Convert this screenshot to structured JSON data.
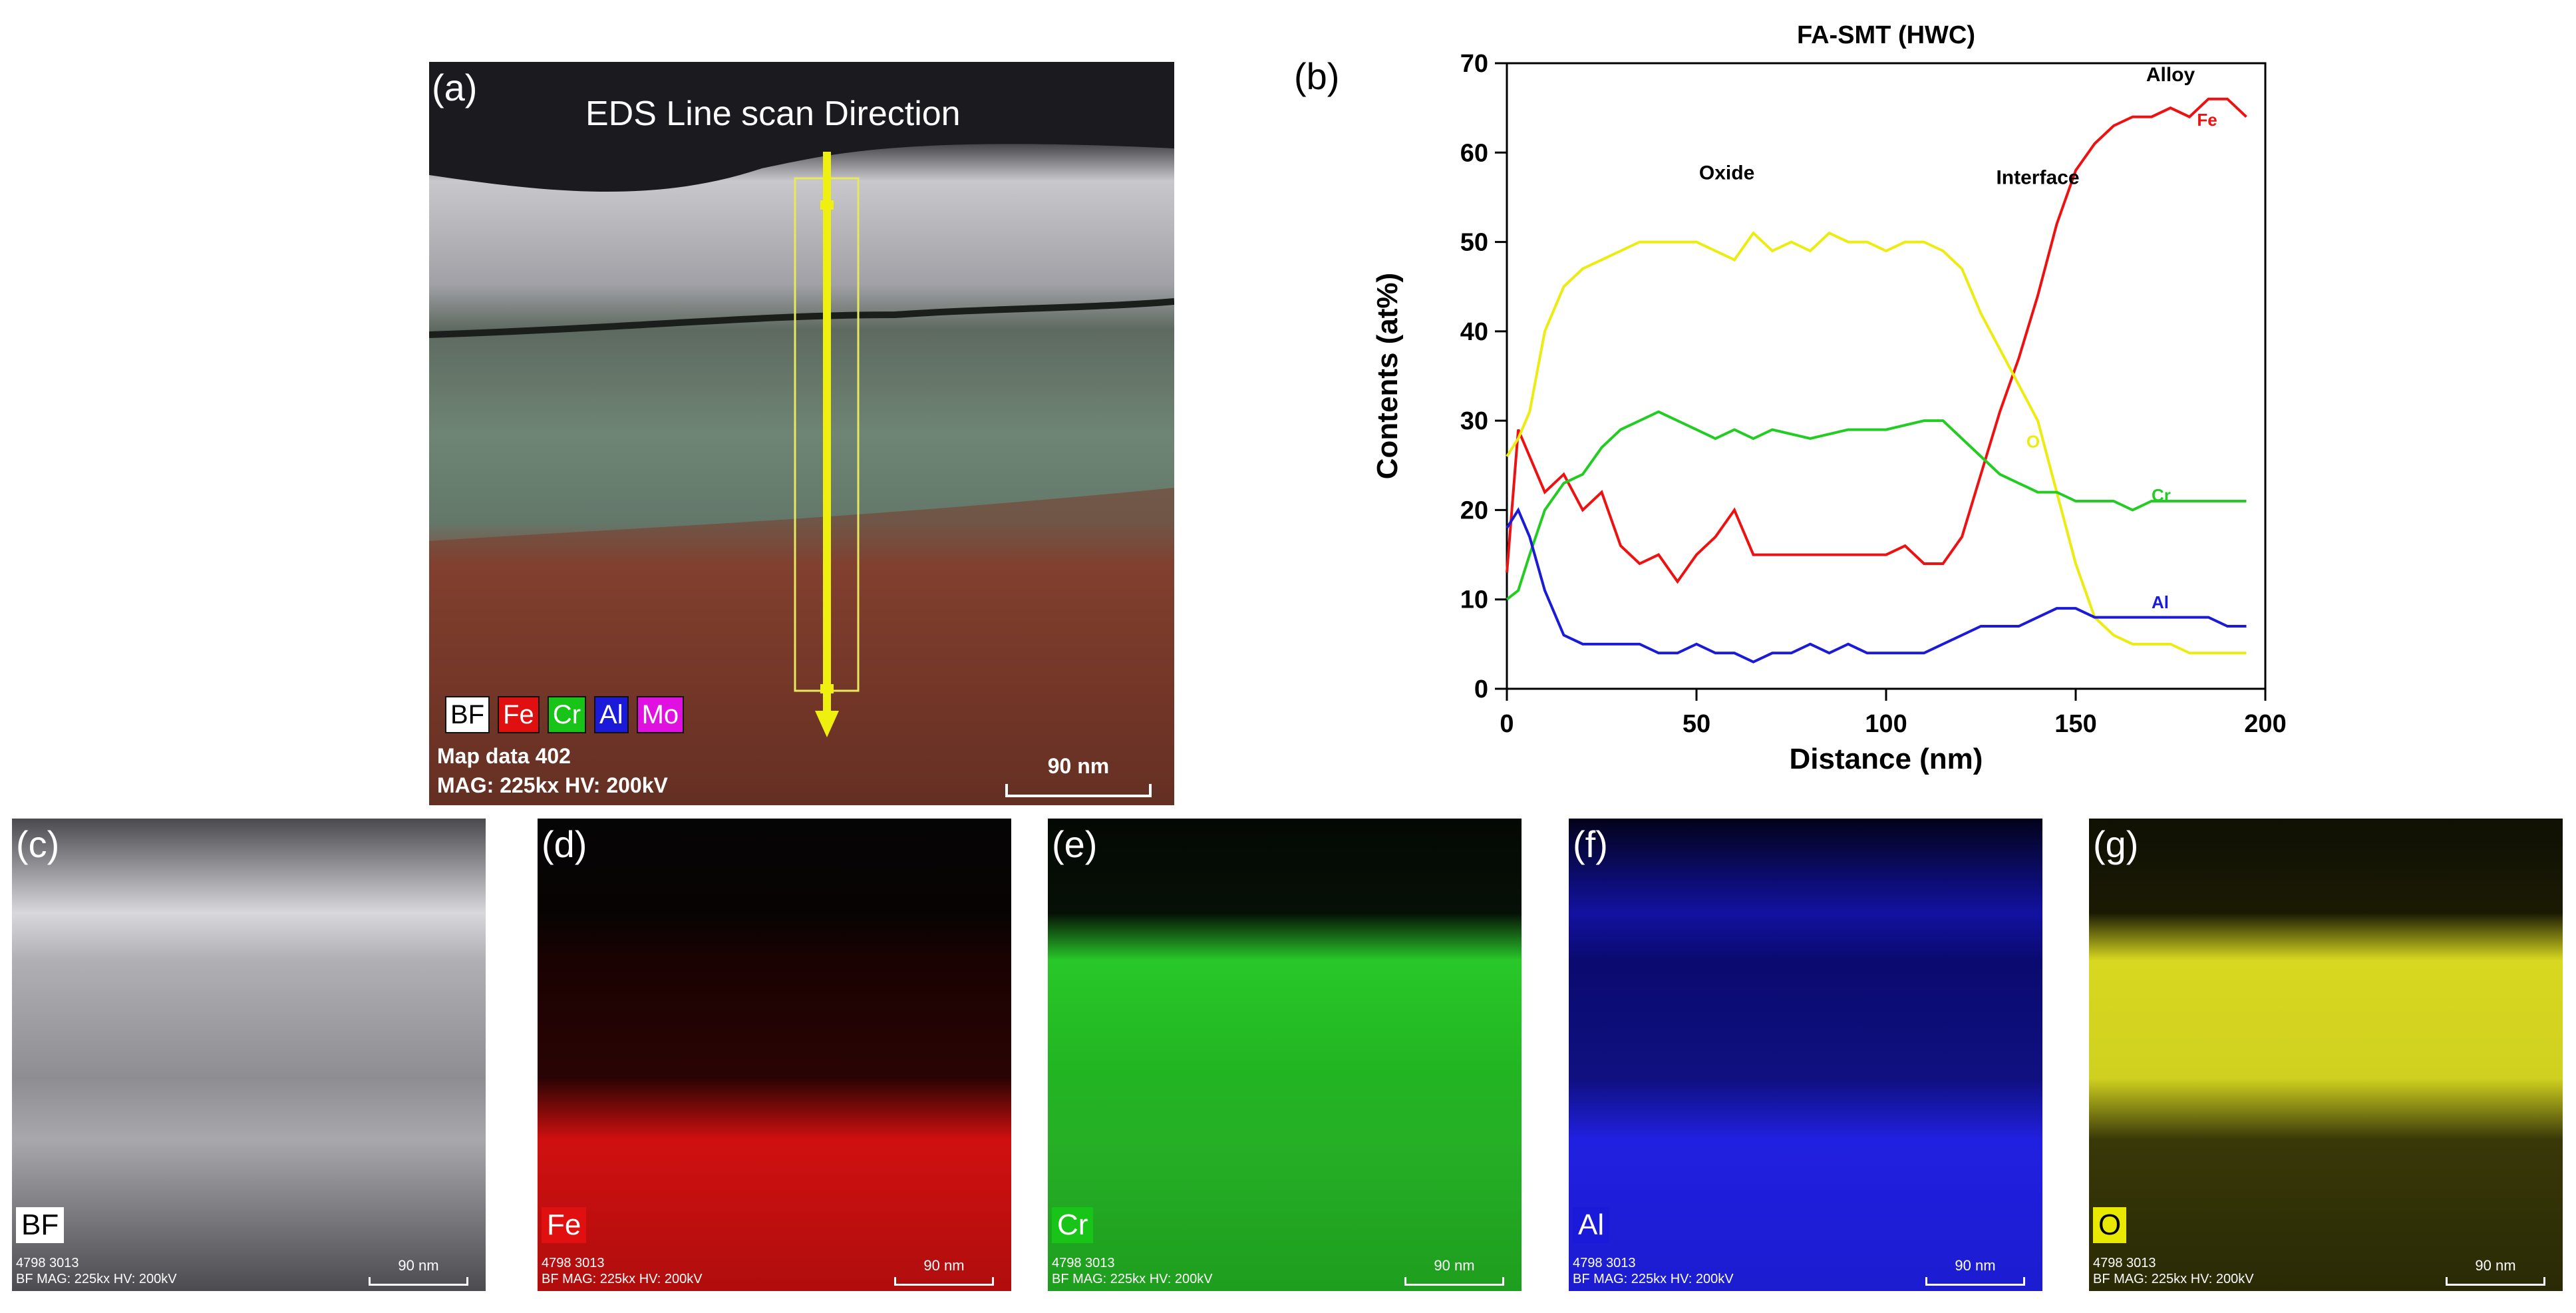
{
  "panel_a": {
    "label": "(a)",
    "title": "EDS Line scan Direction",
    "legend": [
      {
        "text": "BF",
        "bg": "#ffffff",
        "fg": "#000000"
      },
      {
        "text": "Fe",
        "bg": "#e01010",
        "fg": "#ffffff"
      },
      {
        "text": "Cr",
        "bg": "#18c418",
        "fg": "#ffffff"
      },
      {
        "text": "Al",
        "bg": "#1a1ad8",
        "fg": "#ffffff"
      },
      {
        "text": "Mo",
        "bg": "#e010e0",
        "fg": "#ffffff"
      }
    ],
    "info1": "Map data 402",
    "info2": "MAG: 225kx  HV: 200kV",
    "scale": "90 nm"
  },
  "panel_b": {
    "label": "(b)"
  },
  "chart_data": {
    "type": "line",
    "title": "FA-SMT (HWC)",
    "xlabel": "Distance (nm)",
    "ylabel": "Contents (at%)",
    "xlim": [
      0,
      200
    ],
    "ylim": [
      0,
      70
    ],
    "xticks": [
      0,
      50,
      100,
      150,
      200
    ],
    "yticks": [
      0,
      10,
      20,
      30,
      40,
      50,
      60,
      70
    ],
    "annotations": [
      "Oxide",
      "Interface",
      "Alloy"
    ],
    "series": [
      {
        "name": "Fe",
        "color": "#ee1111",
        "x": [
          0,
          3,
          6,
          10,
          15,
          20,
          25,
          30,
          35,
          40,
          45,
          50,
          55,
          60,
          65,
          70,
          80,
          90,
          100,
          105,
          110,
          115,
          120,
          125,
          130,
          135,
          140,
          145,
          150,
          155,
          160,
          165,
          170,
          175,
          180,
          185,
          190,
          195
        ],
        "y": [
          13,
          29,
          26,
          22,
          24,
          20,
          22,
          16,
          14,
          15,
          12,
          15,
          17,
          20,
          15,
          15,
          15,
          15,
          15,
          16,
          14,
          14,
          17,
          24,
          31,
          37,
          44,
          52,
          58,
          61,
          63,
          64,
          64,
          65,
          64,
          66,
          66,
          64
        ]
      },
      {
        "name": "O",
        "color": "#ecec10",
        "x": [
          0,
          3,
          6,
          10,
          15,
          20,
          25,
          30,
          35,
          40,
          45,
          50,
          55,
          60,
          65,
          70,
          75,
          80,
          85,
          90,
          95,
          100,
          105,
          110,
          115,
          120,
          125,
          130,
          135,
          140,
          145,
          150,
          155,
          160,
          165,
          170,
          175,
          180,
          185,
          190,
          195
        ],
        "y": [
          26,
          28,
          31,
          40,
          45,
          47,
          48,
          49,
          50,
          50,
          50,
          50,
          49,
          48,
          51,
          49,
          50,
          49,
          51,
          50,
          50,
          49,
          50,
          50,
          49,
          47,
          42,
          38,
          34,
          30,
          22,
          14,
          8,
          6,
          5,
          5,
          5,
          4,
          4,
          4,
          4
        ]
      },
      {
        "name": "Cr",
        "color": "#22cc22",
        "x": [
          0,
          3,
          6,
          10,
          15,
          20,
          25,
          30,
          35,
          40,
          45,
          50,
          55,
          60,
          65,
          70,
          80,
          90,
          100,
          110,
          115,
          120,
          125,
          130,
          135,
          140,
          145,
          150,
          155,
          160,
          165,
          170,
          175,
          180,
          185,
          190,
          195
        ],
        "y": [
          10,
          11,
          15,
          20,
          23,
          24,
          27,
          29,
          30,
          31,
          30,
          29,
          28,
          29,
          28,
          29,
          28,
          29,
          29,
          30,
          30,
          28,
          26,
          24,
          23,
          22,
          22,
          21,
          21,
          21,
          20,
          21,
          21,
          21,
          21,
          21,
          21
        ]
      },
      {
        "name": "Al",
        "color": "#1a1ad8",
        "x": [
          0,
          3,
          6,
          10,
          15,
          20,
          25,
          30,
          35,
          40,
          45,
          50,
          55,
          60,
          65,
          70,
          75,
          80,
          85,
          90,
          95,
          100,
          105,
          110,
          115,
          120,
          125,
          130,
          135,
          140,
          145,
          150,
          155,
          160,
          165,
          170,
          175,
          180,
          185,
          190,
          195
        ],
        "y": [
          18,
          20,
          17,
          11,
          6,
          5,
          5,
          5,
          5,
          4,
          4,
          5,
          4,
          4,
          3,
          4,
          4,
          5,
          4,
          5,
          4,
          4,
          4,
          4,
          5,
          6,
          7,
          7,
          7,
          8,
          9,
          9,
          8,
          8,
          8,
          8,
          8,
          8,
          8,
          7,
          7
        ]
      }
    ]
  },
  "maps": [
    {
      "label": "(c)",
      "tag": "BF",
      "tag_bg": "#ffffff",
      "tag_fg": "#000000",
      "info1": "4798 3013",
      "info2": "BF  MAG: 225kx  HV: 200kV",
      "scale": "90 nm"
    },
    {
      "label": "(d)",
      "tag": "Fe",
      "tag_bg": "#e01010",
      "tag_fg": "#ffffff",
      "info1": "4798 3013",
      "info2": "BF  MAG: 225kx  HV: 200kV",
      "scale": "90 nm"
    },
    {
      "label": "(e)",
      "tag": "Cr",
      "tag_bg": "#18c418",
      "tag_fg": "#ffffff",
      "info1": "4798 3013",
      "info2": "BF  MAG: 225kx  HV: 200kV",
      "scale": "90 nm"
    },
    {
      "label": "(f)",
      "tag": "Al",
      "tag_bg": "#1a1ad8",
      "tag_fg": "#ffffff",
      "info1": "4798 3013",
      "info2": "BF  MAG: 225kx  HV: 200kV",
      "scale": "90 nm"
    },
    {
      "label": "(g)",
      "tag": "O",
      "tag_bg": "#e8e800",
      "tag_fg": "#000000",
      "info1": "4798 3013",
      "info2": "BF  MAG: 225kx  HV: 200kV",
      "scale": "90 nm"
    }
  ]
}
